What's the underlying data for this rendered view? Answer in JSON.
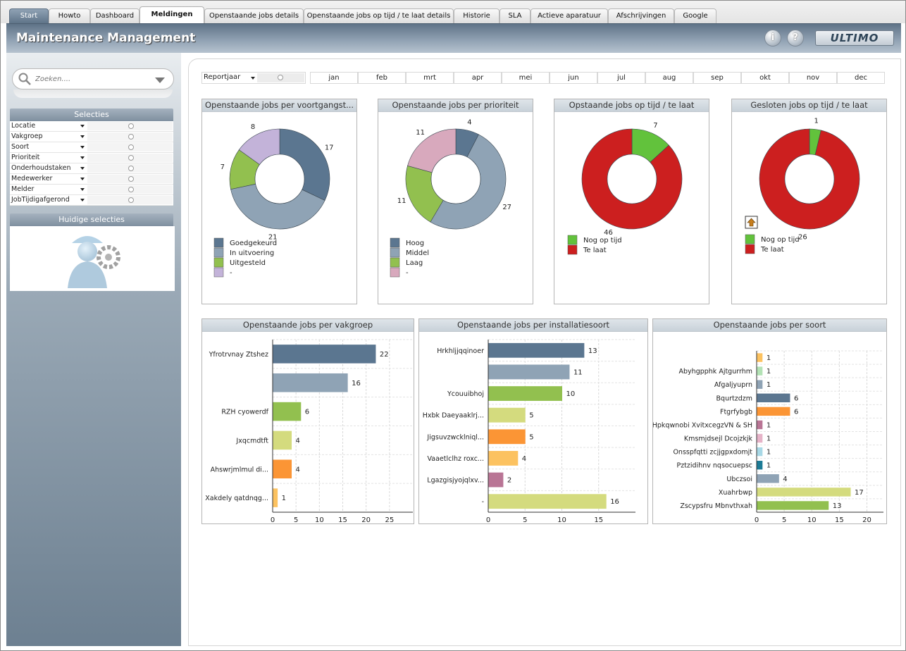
{
  "tabs": [
    {
      "label": "Start",
      "kind": "start"
    },
    {
      "label": "Howto"
    },
    {
      "label": "Dashboard"
    },
    {
      "label": "Meldingen",
      "kind": "active"
    },
    {
      "label": "Openstaande jobs details"
    },
    {
      "label": "Openstaande jobs op tijd / te laat details"
    },
    {
      "label": "Historie"
    },
    {
      "label": "SLA"
    },
    {
      "label": "Actieve aparatuur"
    },
    {
      "label": "Afschrijvingen"
    },
    {
      "label": "Google"
    }
  ],
  "header": {
    "title": "Maintenance Management",
    "info_icon": "i",
    "help_icon": "?",
    "logo": "ULTIMO"
  },
  "sidebar": {
    "search_placeholder": "Zoeken....",
    "selecties_title": "Selecties",
    "selecties": [
      "Locatie",
      "Vakgroep",
      "Soort",
      "Prioriteit",
      "Onderhoudstaken",
      "Medewerker",
      "Melder",
      "JobTijdigafgerond"
    ],
    "current_title": "Huidige selecties"
  },
  "filters": {
    "reportjaar_label": "Reportjaar",
    "months": [
      "jan",
      "feb",
      "mrt",
      "apr",
      "mei",
      "jun",
      "jul",
      "aug",
      "sep",
      "okt",
      "nov",
      "dec"
    ]
  },
  "colors": {
    "slate": "#5b7690",
    "grey": "#8fa3b5",
    "green": "#92c04f",
    "lilac": "#c3b3d9",
    "pink": "#d8a9bd",
    "red": "#cc1f1f",
    "bright_green": "#62c23c",
    "khaki": "#d4db7e",
    "orange": "#fb9535",
    "light_orange": "#fcc260",
    "mauve": "#b97595",
    "mint": "#b3e2b5",
    "light_blue": "#a8d8e6",
    "teal": "#1d7b96",
    "light_pink": "#e6b3c8"
  },
  "chart_data": [
    {
      "type": "pie",
      "title": "Openstaande jobs per voortgangst...",
      "slices": [
        {
          "label": "Goedgekeurd",
          "value": 17,
          "color": "#5b7690"
        },
        {
          "label": "In uitvoering",
          "value": 21,
          "color": "#8fa3b5"
        },
        {
          "label": "Uitgesteld",
          "value": 7,
          "color": "#92c04f"
        },
        {
          "label": "-",
          "value": 8,
          "color": "#c3b3d9"
        }
      ]
    },
    {
      "type": "pie",
      "title": "Openstaande jobs per prioriteit",
      "slices": [
        {
          "label": "Hoog",
          "value": 4,
          "color": "#5b7690"
        },
        {
          "label": "Middel",
          "value": 27,
          "color": "#8fa3b5"
        },
        {
          "label": "Laag",
          "value": 11,
          "color": "#92c04f"
        },
        {
          "label": "-",
          "value": 11,
          "color": "#d8a9bd"
        }
      ]
    },
    {
      "type": "pie",
      "title": "Opstaande jobs op tijd / te laat",
      "slices": [
        {
          "label": "Nog op tijd",
          "value": 7,
          "color": "#62c23c"
        },
        {
          "label": "Te laat",
          "value": 46,
          "color": "#cc1f1f"
        }
      ]
    },
    {
      "type": "pie",
      "title": "Gesloten jobs op tijd / te laat",
      "slices": [
        {
          "label": "Nog op tijd",
          "value": 1,
          "color": "#62c23c"
        },
        {
          "label": "Te laat",
          "value": 26,
          "color": "#cc1f1f"
        }
      ]
    },
    {
      "type": "bar",
      "title": "Openstaande jobs per vakgroep",
      "categories": [
        "Yfrotrvnay Ztshez",
        "",
        "RZH cyowerdf",
        "Jxqcmdtft",
        "Ahswrjmlmul di...",
        "Xakdely qatdnqg..."
      ],
      "values": [
        22,
        16,
        6,
        4,
        4,
        1
      ],
      "colors": [
        "#5b7690",
        "#8fa3b5",
        "#92c04f",
        "#d4db7e",
        "#fb9535",
        "#fcc260"
      ],
      "xlim": [
        0,
        30
      ],
      "ticks": [
        0,
        5,
        10,
        15,
        20,
        25
      ]
    },
    {
      "type": "bar",
      "title": "Openstaande jobs per installatiesoort",
      "categories": [
        "Hrkhljjqqinoer",
        "",
        "Ycouuibhoj",
        "Hxbk Daeyaaklrj...",
        "Jigsuvzwcklniql...",
        "Vaaetlclhz roxc...",
        "Lgazgisjyojqlxv...",
        "-"
      ],
      "values": [
        13,
        11,
        10,
        5,
        5,
        4,
        2,
        16
      ],
      "colors": [
        "#5b7690",
        "#8fa3b5",
        "#92c04f",
        "#d4db7e",
        "#fb9535",
        "#fcc260",
        "#b97595",
        "#d4db7e"
      ],
      "xlim": [
        0,
        20
      ],
      "ticks": [
        0,
        5,
        10,
        15
      ]
    },
    {
      "type": "bar",
      "title": "Openstaande jobs per soort",
      "categories": [
        "",
        "Abyhgpphk Ajtgurrhm",
        "Afgaljyuprn",
        "Bqurtzdzm",
        "Ftgrfybgb",
        "Hpkqwnobi XvitxcegzVN & SH",
        "Kmsmjdsejl Dcojzkjk",
        "Onsspfqtti zcjjgpxdomjt",
        "Pztzidihnv nqsocuepsc",
        "Ubczsoi",
        "Xuahrbwp",
        "Zscypsfru Mbnvthxah"
      ],
      "values": [
        1,
        1,
        1,
        6,
        6,
        1,
        1,
        1,
        1,
        4,
        17,
        13
      ],
      "colors": [
        "#fcc260",
        "#b3e2b5",
        "#8fa3b5",
        "#5b7690",
        "#fb9535",
        "#b97595",
        "#e6b3c8",
        "#a8d8e6",
        "#1d7b96",
        "#8fa3b5",
        "#d4db7e",
        "#92c04f"
      ],
      "xlim": [
        0,
        23
      ],
      "ticks": [
        0,
        5,
        10,
        15,
        20
      ]
    }
  ]
}
